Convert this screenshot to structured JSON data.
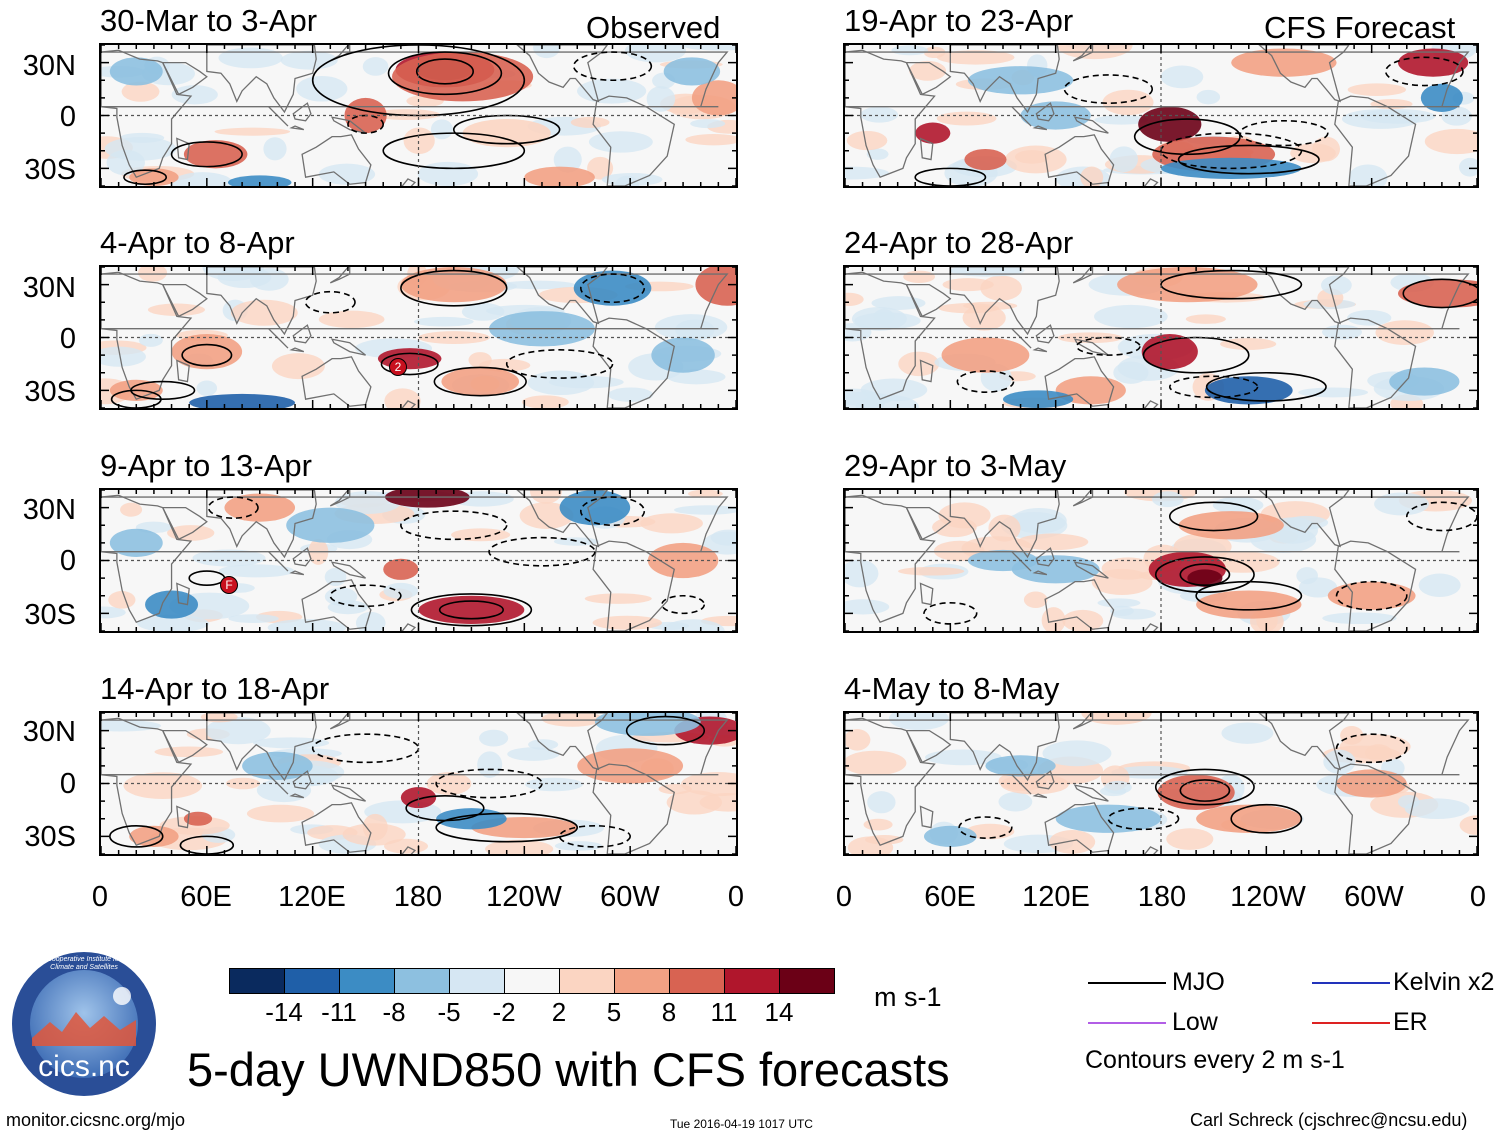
{
  "header": {
    "observed_label": "Observed",
    "forecast_label": "CFS Forecast"
  },
  "panels": {
    "left": [
      {
        "title": "30-Mar to 3-Apr"
      },
      {
        "title": "4-Apr to 8-Apr"
      },
      {
        "title": "9-Apr to 13-Apr"
      },
      {
        "title": "14-Apr to 18-Apr"
      }
    ],
    "right": [
      {
        "title": "19-Apr to 23-Apr"
      },
      {
        "title": "24-Apr to 28-Apr"
      },
      {
        "title": "29-Apr to 3-May"
      },
      {
        "title": "4-May to 8-May"
      }
    ]
  },
  "tc_markers": [
    "2",
    "F"
  ],
  "chart_data": {
    "type": "heatmap",
    "title": "5-day UWND850 with CFS forecasts",
    "variable": "850-hPa zonal wind anomaly",
    "units": "m s-1",
    "y_ticks": [
      "30N",
      "0",
      "30S"
    ],
    "x_ticks": [
      "0",
      "60E",
      "120E",
      "180",
      "120W",
      "60W",
      "0"
    ],
    "lat_range": [
      -40,
      40
    ],
    "lon_range": [
      0,
      360
    ],
    "colorbar": {
      "labels": [
        "-14",
        "-11",
        "-8",
        "-5",
        "-2",
        "2",
        "5",
        "8",
        "11",
        "14"
      ],
      "colors": [
        "#0a2a5e",
        "#1f5fa8",
        "#3c8cc4",
        "#8dc0e0",
        "#d6e7f3",
        "#f7f7f7",
        "#fbd5c2",
        "#f2a184",
        "#d86352",
        "#b0162c",
        "#6b0016"
      ]
    },
    "legend": [
      {
        "label": "MJO",
        "color": "#000000"
      },
      {
        "label": "Kelvin x2",
        "color": "#2233bb"
      },
      {
        "label": "Low",
        "color": "#b25ee6"
      },
      {
        "label": "ER",
        "color": "#dd2222"
      }
    ],
    "contour_note": "Contours every 2 m s-1"
  },
  "footer": {
    "logo_text": "cics.nc",
    "logo_ring_text": "Cooperative Institute for Climate and Satellites",
    "url": "monitor.cicsnc.org/mjo",
    "timestamp": "Tue 2016-04-19 1017 UTC",
    "author": "Carl Schreck (cjschrec@ncsu.edu)"
  }
}
